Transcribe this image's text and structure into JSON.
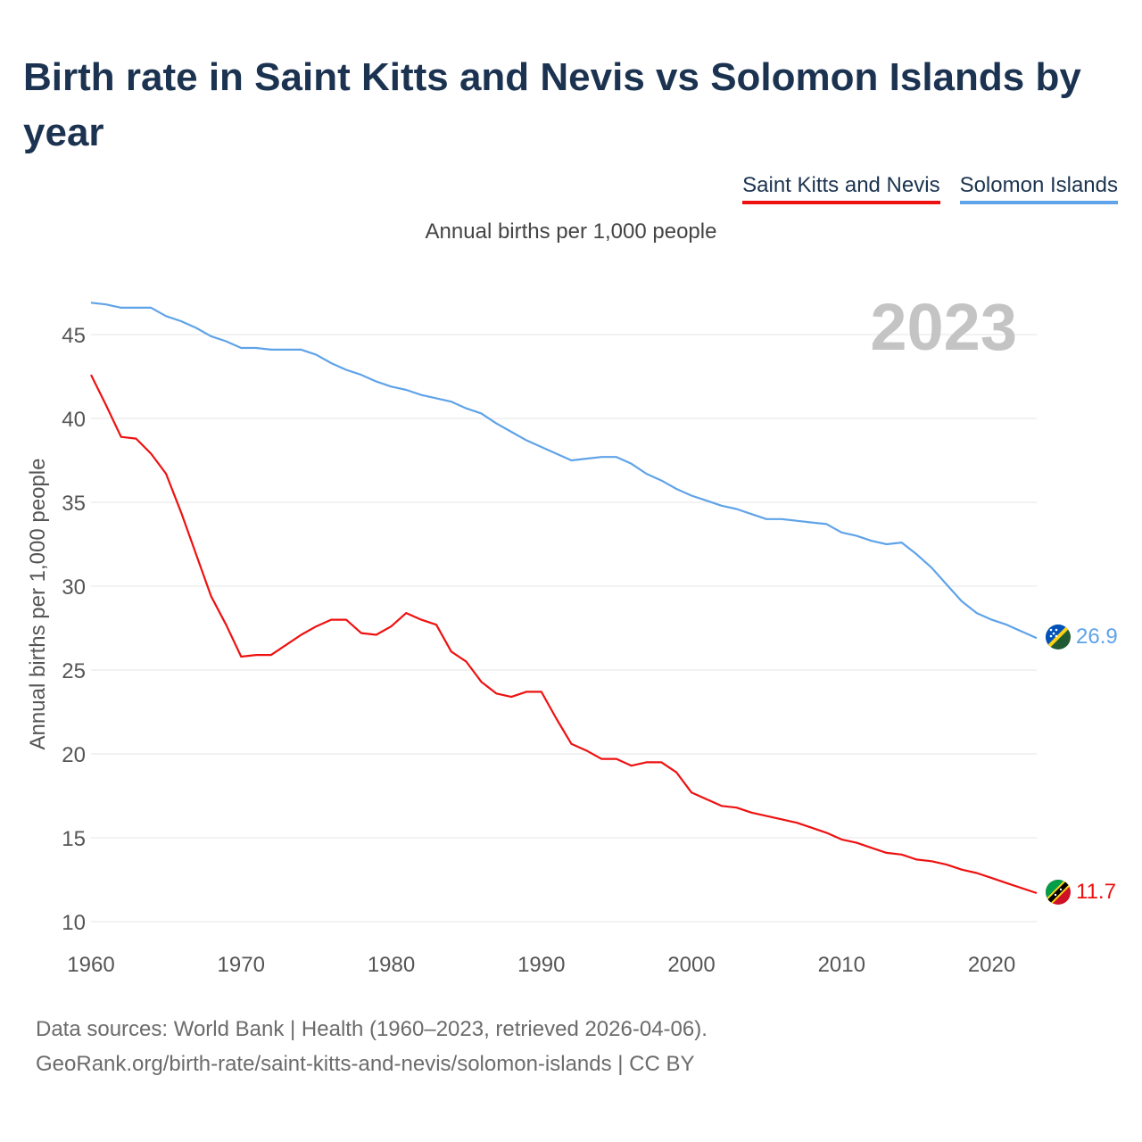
{
  "title": "Birth rate in Saint Kitts and Nevis vs Solomon Islands by year",
  "legend": [
    {
      "label": "Saint Kitts and Nevis",
      "color": "#ee1111"
    },
    {
      "label": "Solomon Islands",
      "color": "#5fa3e8"
    }
  ],
  "subtitle": "Annual births per 1,000 people",
  "year_watermark": "2023",
  "source_line1": "Data sources: World Bank | Health (1960–2023, retrieved 2026-04-06).",
  "source_line2": "GeoRank.org/birth-rate/saint-kitts-and-nevis/solomon-islands | CC BY",
  "chart_data": {
    "type": "line",
    "title": "Birth rate in Saint Kitts and Nevis vs Solomon Islands by year",
    "xlabel": "",
    "ylabel": "Annual births per 1,000 people",
    "xlim": [
      1960,
      2023
    ],
    "ylim": [
      10,
      47.5
    ],
    "x_ticks": [
      1960,
      1970,
      1980,
      1990,
      2000,
      2010,
      2020
    ],
    "y_ticks": [
      10,
      15,
      20,
      25,
      30,
      35,
      40,
      45
    ],
    "grid": true,
    "legend_position": "top-right",
    "x": [
      1960,
      1961,
      1962,
      1963,
      1964,
      1965,
      1966,
      1967,
      1968,
      1969,
      1970,
      1971,
      1972,
      1973,
      1974,
      1975,
      1976,
      1977,
      1978,
      1979,
      1980,
      1981,
      1982,
      1983,
      1984,
      1985,
      1986,
      1987,
      1988,
      1989,
      1990,
      1991,
      1992,
      1993,
      1994,
      1995,
      1996,
      1997,
      1998,
      1999,
      2000,
      2001,
      2002,
      2003,
      2004,
      2005,
      2006,
      2007,
      2008,
      2009,
      2010,
      2011,
      2012,
      2013,
      2014,
      2015,
      2016,
      2017,
      2018,
      2019,
      2020,
      2021,
      2022,
      2023
    ],
    "series": [
      {
        "name": "Saint Kitts and Nevis",
        "color": "#ee1111",
        "end_label": "11.7",
        "values": [
          42.6,
          40.8,
          38.9,
          38.8,
          37.9,
          36.7,
          34.4,
          31.9,
          29.4,
          27.7,
          25.8,
          25.9,
          25.9,
          26.5,
          27.1,
          27.6,
          28.0,
          28.0,
          27.2,
          27.1,
          27.6,
          28.4,
          28.0,
          27.7,
          26.1,
          25.5,
          24.3,
          23.6,
          23.4,
          23.7,
          23.7,
          22.1,
          20.6,
          20.2,
          19.7,
          19.7,
          19.3,
          19.5,
          19.5,
          18.9,
          17.7,
          17.3,
          16.9,
          16.8,
          16.5,
          16.3,
          16.1,
          15.9,
          15.6,
          15.3,
          14.9,
          14.7,
          14.4,
          14.1,
          14.0,
          13.7,
          13.6,
          13.4,
          13.1,
          12.9,
          12.6,
          12.3,
          12.0,
          11.7
        ]
      },
      {
        "name": "Solomon Islands",
        "color": "#5fa3e8",
        "end_label": "26.9",
        "values": [
          46.9,
          46.8,
          46.6,
          46.6,
          46.6,
          46.1,
          45.8,
          45.4,
          44.9,
          44.6,
          44.2,
          44.2,
          44.1,
          44.1,
          44.1,
          43.8,
          43.3,
          42.9,
          42.6,
          42.2,
          41.9,
          41.7,
          41.4,
          41.2,
          41.0,
          40.6,
          40.3,
          39.7,
          39.2,
          38.7,
          38.3,
          37.9,
          37.5,
          37.6,
          37.7,
          37.7,
          37.3,
          36.7,
          36.3,
          35.8,
          35.4,
          35.1,
          34.8,
          34.6,
          34.3,
          34.0,
          34.0,
          33.9,
          33.8,
          33.7,
          33.2,
          33.0,
          32.7,
          32.5,
          32.6,
          31.9,
          31.1,
          30.1,
          29.1,
          28.4,
          28.0,
          27.7,
          27.3,
          26.9
        ]
      }
    ]
  }
}
